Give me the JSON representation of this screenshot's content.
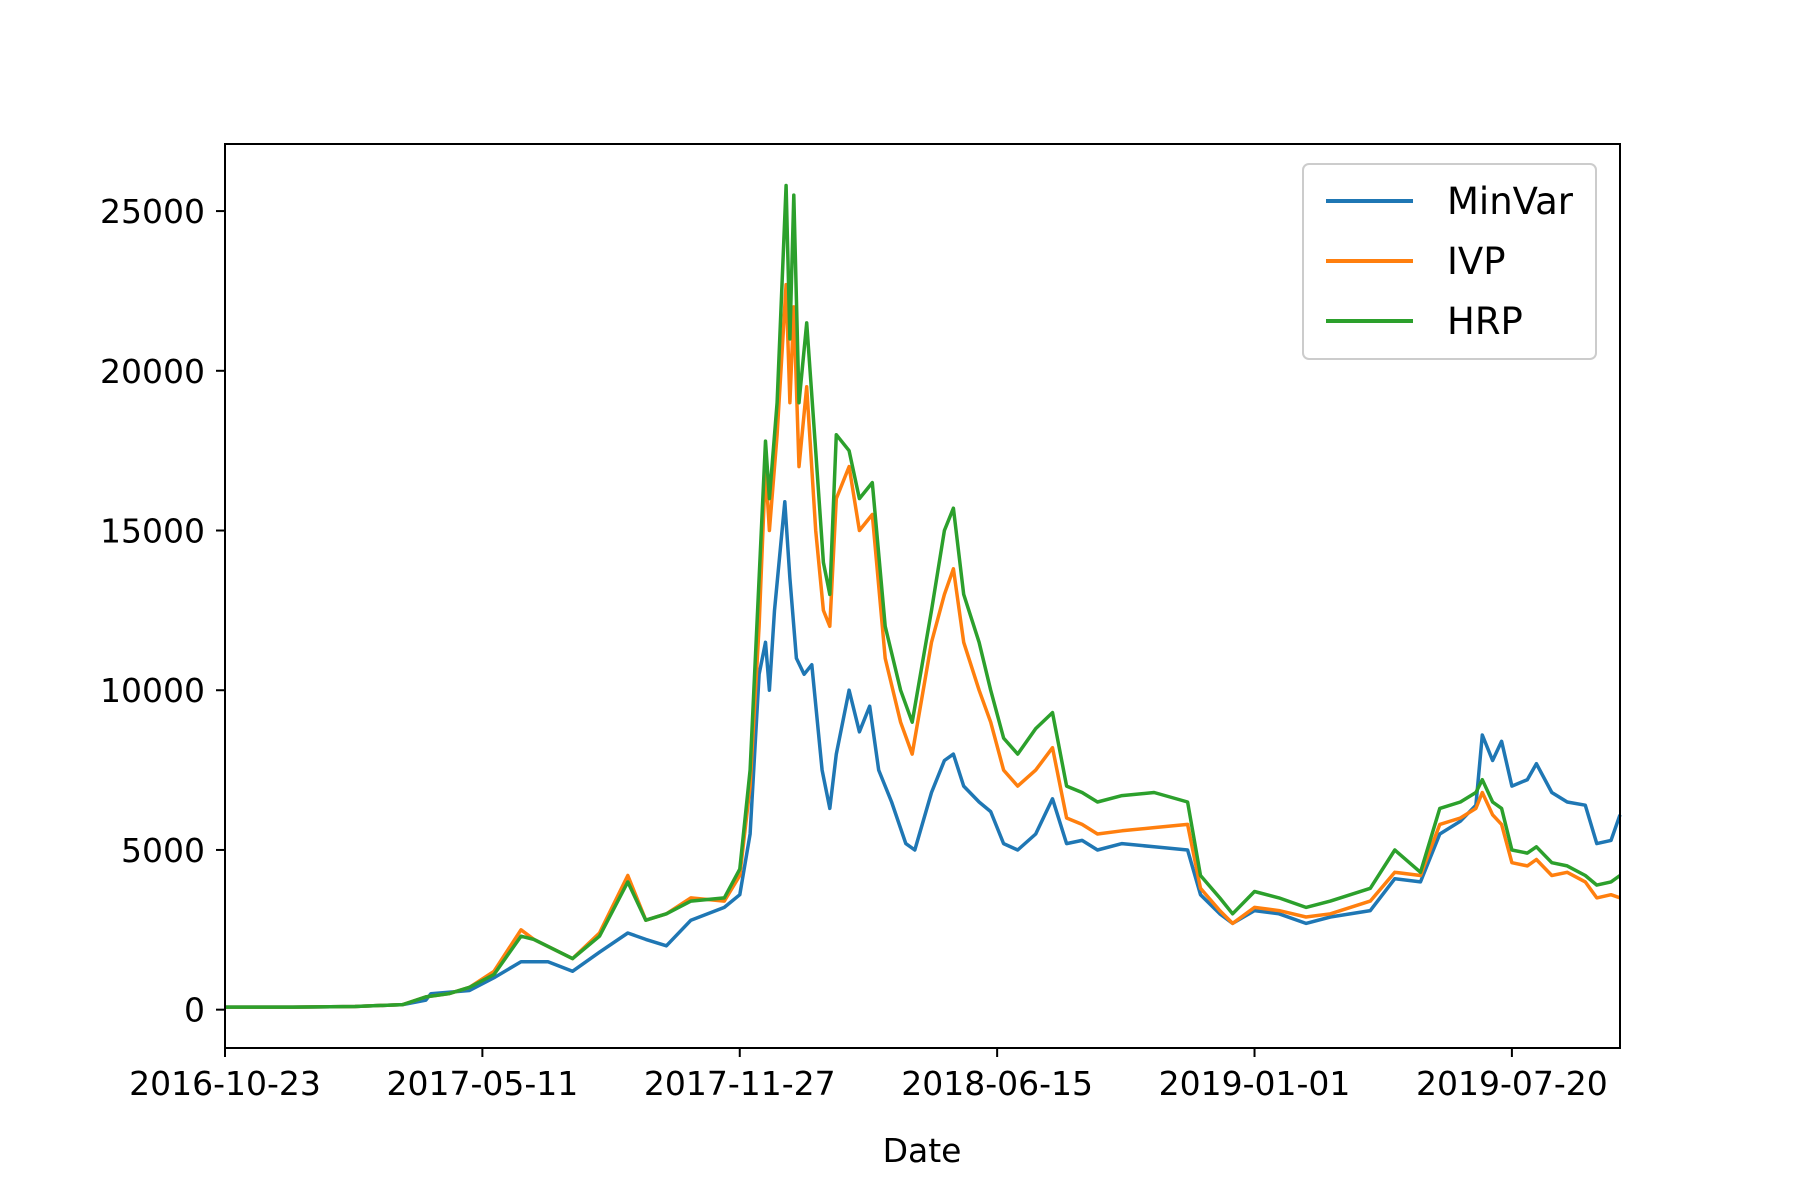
{
  "chart_data": {
    "type": "line",
    "title": "",
    "xlabel": "Date",
    "ylabel": "",
    "xlim": [
      "2016-10-23",
      "2019-10-12"
    ],
    "ylim": [
      -1200,
      27100
    ],
    "xticks": [
      "2016-10-23",
      "2017-05-11",
      "2017-11-27",
      "2018-06-15",
      "2019-01-01",
      "2019-07-20"
    ],
    "yticks": [
      0,
      5000,
      10000,
      15000,
      20000,
      25000
    ],
    "grid": false,
    "legend_position": "top-right",
    "series": [
      {
        "name": "MinVar",
        "color": "#1f77b4",
        "points": [
          [
            "2016-10-23",
            80
          ],
          [
            "2016-12-15",
            80
          ],
          [
            "2017-02-01",
            100
          ],
          [
            "2017-03-10",
            160
          ],
          [
            "2017-03-28",
            300
          ],
          [
            "2017-04-01",
            500
          ],
          [
            "2017-05-01",
            600
          ],
          [
            "2017-05-20",
            1000
          ],
          [
            "2017-06-10",
            1500
          ],
          [
            "2017-07-01",
            1500
          ],
          [
            "2017-07-20",
            1200
          ],
          [
            "2017-08-10",
            1800
          ],
          [
            "2017-09-01",
            2400
          ],
          [
            "2017-09-15",
            2200
          ],
          [
            "2017-10-01",
            2000
          ],
          [
            "2017-10-20",
            2800
          ],
          [
            "2017-11-15",
            3200
          ],
          [
            "2017-11-27",
            3600
          ],
          [
            "2017-12-05",
            5500
          ],
          [
            "2017-12-12",
            10500
          ],
          [
            "2017-12-17",
            11500
          ],
          [
            "2017-12-20",
            10000
          ],
          [
            "2017-12-24",
            12500
          ],
          [
            "2018-01-01",
            15900
          ],
          [
            "2018-01-05",
            13500
          ],
          [
            "2018-01-10",
            11000
          ],
          [
            "2018-01-16",
            10500
          ],
          [
            "2018-01-22",
            10800
          ],
          [
            "2018-01-30",
            7500
          ],
          [
            "2018-02-05",
            6300
          ],
          [
            "2018-02-10",
            8000
          ],
          [
            "2018-02-20",
            10000
          ],
          [
            "2018-02-28",
            8700
          ],
          [
            "2018-03-08",
            9500
          ],
          [
            "2018-03-15",
            7500
          ],
          [
            "2018-03-25",
            6500
          ],
          [
            "2018-04-05",
            5200
          ],
          [
            "2018-04-12",
            5000
          ],
          [
            "2018-04-25",
            6800
          ],
          [
            "2018-05-05",
            7800
          ],
          [
            "2018-05-12",
            8000
          ],
          [
            "2018-05-20",
            7000
          ],
          [
            "2018-06-01",
            6500
          ],
          [
            "2018-06-10",
            6200
          ],
          [
            "2018-06-20",
            5200
          ],
          [
            "2018-07-01",
            5000
          ],
          [
            "2018-07-15",
            5500
          ],
          [
            "2018-07-28",
            6600
          ],
          [
            "2018-08-08",
            5200
          ],
          [
            "2018-08-20",
            5300
          ],
          [
            "2018-09-01",
            5000
          ],
          [
            "2018-09-20",
            5200
          ],
          [
            "2018-10-15",
            5100
          ],
          [
            "2018-11-10",
            5000
          ],
          [
            "2018-11-20",
            3600
          ],
          [
            "2018-12-05",
            3000
          ],
          [
            "2018-12-15",
            2700
          ],
          [
            "2019-01-01",
            3100
          ],
          [
            "2019-01-20",
            3000
          ],
          [
            "2019-02-10",
            2700
          ],
          [
            "2019-03-01",
            2900
          ],
          [
            "2019-04-01",
            3100
          ],
          [
            "2019-04-20",
            4100
          ],
          [
            "2019-05-10",
            4000
          ],
          [
            "2019-05-25",
            5500
          ],
          [
            "2019-06-10",
            5900
          ],
          [
            "2019-06-22",
            6400
          ],
          [
            "2019-06-27",
            8600
          ],
          [
            "2019-07-05",
            7800
          ],
          [
            "2019-07-12",
            8400
          ],
          [
            "2019-07-20",
            7000
          ],
          [
            "2019-08-01",
            7200
          ],
          [
            "2019-08-08",
            7700
          ],
          [
            "2019-08-20",
            6800
          ],
          [
            "2019-09-01",
            6500
          ],
          [
            "2019-09-15",
            6400
          ],
          [
            "2019-09-24",
            5200
          ],
          [
            "2019-10-05",
            5300
          ],
          [
            "2019-10-12",
            6100
          ]
        ]
      },
      {
        "name": "IVP",
        "color": "#ff7f0e",
        "points": [
          [
            "2016-10-23",
            80
          ],
          [
            "2016-12-15",
            80
          ],
          [
            "2017-02-01",
            100
          ],
          [
            "2017-03-10",
            160
          ],
          [
            "2017-03-28",
            400
          ],
          [
            "2017-04-15",
            500
          ],
          [
            "2017-05-01",
            700
          ],
          [
            "2017-05-20",
            1200
          ],
          [
            "2017-06-10",
            2500
          ],
          [
            "2017-06-20",
            2200
          ],
          [
            "2017-07-20",
            1600
          ],
          [
            "2017-08-10",
            2400
          ],
          [
            "2017-09-01",
            4200
          ],
          [
            "2017-09-15",
            2800
          ],
          [
            "2017-10-01",
            3000
          ],
          [
            "2017-10-20",
            3500
          ],
          [
            "2017-11-15",
            3400
          ],
          [
            "2017-11-27",
            4200
          ],
          [
            "2017-12-05",
            7000
          ],
          [
            "2017-12-12",
            12000
          ],
          [
            "2017-12-17",
            17000
          ],
          [
            "2017-12-20",
            15000
          ],
          [
            "2017-12-26",
            18000
          ],
          [
            "2018-01-02",
            22700
          ],
          [
            "2018-01-05",
            19000
          ],
          [
            "2018-01-08",
            22000
          ],
          [
            "2018-01-12",
            17000
          ],
          [
            "2018-01-18",
            19500
          ],
          [
            "2018-01-25",
            15000
          ],
          [
            "2018-01-31",
            12500
          ],
          [
            "2018-02-05",
            12000
          ],
          [
            "2018-02-10",
            16000
          ],
          [
            "2018-02-20",
            17000
          ],
          [
            "2018-02-28",
            15000
          ],
          [
            "2018-03-10",
            15500
          ],
          [
            "2018-03-20",
            11000
          ],
          [
            "2018-04-01",
            9000
          ],
          [
            "2018-04-10",
            8000
          ],
          [
            "2018-04-25",
            11500
          ],
          [
            "2018-05-05",
            13000
          ],
          [
            "2018-05-12",
            13800
          ],
          [
            "2018-05-20",
            11500
          ],
          [
            "2018-06-01",
            10000
          ],
          [
            "2018-06-10",
            9000
          ],
          [
            "2018-06-20",
            7500
          ],
          [
            "2018-07-01",
            7000
          ],
          [
            "2018-07-15",
            7500
          ],
          [
            "2018-07-28",
            8200
          ],
          [
            "2018-08-08",
            6000
          ],
          [
            "2018-08-20",
            5800
          ],
          [
            "2018-09-01",
            5500
          ],
          [
            "2018-09-20",
            5600
          ],
          [
            "2018-10-15",
            5700
          ],
          [
            "2018-11-10",
            5800
          ],
          [
            "2018-11-20",
            3800
          ],
          [
            "2018-12-05",
            3100
          ],
          [
            "2018-12-15",
            2700
          ],
          [
            "2019-01-01",
            3200
          ],
          [
            "2019-01-20",
            3100
          ],
          [
            "2019-02-10",
            2900
          ],
          [
            "2019-03-01",
            3000
          ],
          [
            "2019-04-01",
            3400
          ],
          [
            "2019-04-20",
            4300
          ],
          [
            "2019-05-10",
            4200
          ],
          [
            "2019-05-25",
            5800
          ],
          [
            "2019-06-10",
            6000
          ],
          [
            "2019-06-22",
            6300
          ],
          [
            "2019-06-27",
            6800
          ],
          [
            "2019-07-05",
            6100
          ],
          [
            "2019-07-12",
            5800
          ],
          [
            "2019-07-20",
            4600
          ],
          [
            "2019-08-01",
            4500
          ],
          [
            "2019-08-08",
            4700
          ],
          [
            "2019-08-20",
            4200
          ],
          [
            "2019-09-01",
            4300
          ],
          [
            "2019-09-15",
            4000
          ],
          [
            "2019-09-24",
            3500
          ],
          [
            "2019-10-05",
            3600
          ],
          [
            "2019-10-12",
            3500
          ]
        ]
      },
      {
        "name": "HRP",
        "color": "#2ca02c",
        "points": [
          [
            "2016-10-23",
            80
          ],
          [
            "2016-12-15",
            80
          ],
          [
            "2017-02-01",
            100
          ],
          [
            "2017-03-10",
            160
          ],
          [
            "2017-03-28",
            400
          ],
          [
            "2017-04-15",
            500
          ],
          [
            "2017-05-01",
            700
          ],
          [
            "2017-05-20",
            1100
          ],
          [
            "2017-06-10",
            2300
          ],
          [
            "2017-06-20",
            2200
          ],
          [
            "2017-07-20",
            1600
          ],
          [
            "2017-08-10",
            2300
          ],
          [
            "2017-09-01",
            4000
          ],
          [
            "2017-09-15",
            2800
          ],
          [
            "2017-10-01",
            3000
          ],
          [
            "2017-10-20",
            3400
          ],
          [
            "2017-11-15",
            3500
          ],
          [
            "2017-11-27",
            4400
          ],
          [
            "2017-12-05",
            7500
          ],
          [
            "2017-12-12",
            13500
          ],
          [
            "2017-12-17",
            17800
          ],
          [
            "2017-12-20",
            16000
          ],
          [
            "2017-12-26",
            19000
          ],
          [
            "2018-01-02",
            25800
          ],
          [
            "2018-01-05",
            21000
          ],
          [
            "2018-01-08",
            25500
          ],
          [
            "2018-01-12",
            19000
          ],
          [
            "2018-01-18",
            21500
          ],
          [
            "2018-01-25",
            17500
          ],
          [
            "2018-01-31",
            14000
          ],
          [
            "2018-02-05",
            13000
          ],
          [
            "2018-02-10",
            18000
          ],
          [
            "2018-02-20",
            17500
          ],
          [
            "2018-02-28",
            16000
          ],
          [
            "2018-03-10",
            16500
          ],
          [
            "2018-03-20",
            12000
          ],
          [
            "2018-04-01",
            10000
          ],
          [
            "2018-04-10",
            9000
          ],
          [
            "2018-04-25",
            12500
          ],
          [
            "2018-05-05",
            15000
          ],
          [
            "2018-05-12",
            15700
          ],
          [
            "2018-05-20",
            13000
          ],
          [
            "2018-06-01",
            11500
          ],
          [
            "2018-06-10",
            10000
          ],
          [
            "2018-06-20",
            8500
          ],
          [
            "2018-07-01",
            8000
          ],
          [
            "2018-07-15",
            8800
          ],
          [
            "2018-07-28",
            9300
          ],
          [
            "2018-08-08",
            7000
          ],
          [
            "2018-08-20",
            6800
          ],
          [
            "2018-09-01",
            6500
          ],
          [
            "2018-09-20",
            6700
          ],
          [
            "2018-10-15",
            6800
          ],
          [
            "2018-11-10",
            6500
          ],
          [
            "2018-11-20",
            4200
          ],
          [
            "2018-12-05",
            3500
          ],
          [
            "2018-12-15",
            3000
          ],
          [
            "2019-01-01",
            3700
          ],
          [
            "2019-01-20",
            3500
          ],
          [
            "2019-02-10",
            3200
          ],
          [
            "2019-03-01",
            3400
          ],
          [
            "2019-04-01",
            3800
          ],
          [
            "2019-04-20",
            5000
          ],
          [
            "2019-05-10",
            4300
          ],
          [
            "2019-05-25",
            6300
          ],
          [
            "2019-06-10",
            6500
          ],
          [
            "2019-06-22",
            6800
          ],
          [
            "2019-06-27",
            7200
          ],
          [
            "2019-07-05",
            6500
          ],
          [
            "2019-07-12",
            6300
          ],
          [
            "2019-07-20",
            5000
          ],
          [
            "2019-08-01",
            4900
          ],
          [
            "2019-08-08",
            5100
          ],
          [
            "2019-08-20",
            4600
          ],
          [
            "2019-09-01",
            4500
          ],
          [
            "2019-09-15",
            4200
          ],
          [
            "2019-09-24",
            3900
          ],
          [
            "2019-10-05",
            4000
          ],
          [
            "2019-10-12",
            4200
          ]
        ]
      }
    ]
  }
}
